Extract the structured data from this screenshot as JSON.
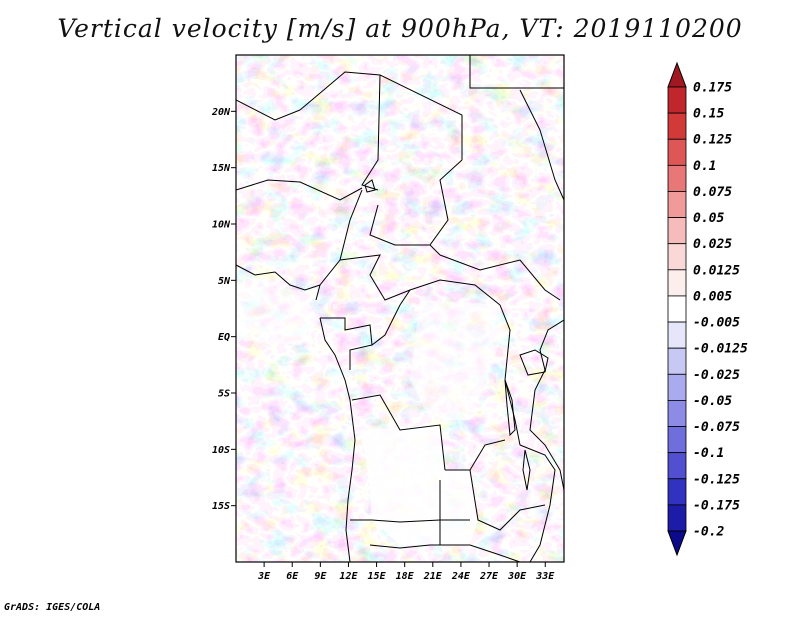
{
  "title": "Vertical velocity [m/s] at 900hPa, VT: 2019110200",
  "credit": "GrADS: IGES/COLA",
  "chart_data": {
    "type": "heatmap",
    "title": "Vertical velocity [m/s] at 900hPa, VT: 2019110200",
    "variable": "Vertical velocity",
    "units": "m/s",
    "level": "900hPa",
    "valid_time": "2019110200",
    "x_axis": {
      "range": [
        0,
        35
      ],
      "ticks": [
        3,
        6,
        9,
        12,
        15,
        18,
        21,
        24,
        27,
        30,
        33
      ],
      "tick_labels": [
        "3E",
        "6E",
        "9E",
        "12E",
        "15E",
        "18E",
        "21E",
        "24E",
        "27E",
        "30E",
        "33E"
      ]
    },
    "y_axis": {
      "range": [
        -20,
        25
      ],
      "ticks": [
        20,
        15,
        10,
        5,
        0,
        -5,
        -10,
        -15
      ],
      "tick_labels": [
        "20N",
        "15N",
        "10N",
        "5N",
        "EQ",
        "5S",
        "10S",
        "15S"
      ]
    },
    "colorbar": {
      "levels": [
        "0.175",
        "0.15",
        "0.125",
        "0.1",
        "0.075",
        "0.05",
        "0.025",
        "0.0125",
        "0.005",
        "-0.005",
        "-0.0125",
        "-0.025",
        "-0.05",
        "-0.075",
        "-0.1",
        "-0.125",
        "-0.175",
        "-0.2"
      ],
      "colors": [
        "#a01820",
        "#c0262c",
        "#d23a3a",
        "#de5656",
        "#e87878",
        "#f09a9a",
        "#f6bcbc",
        "#fad8d8",
        "#fdeeee",
        "#ffffff",
        "#e6e6fa",
        "#c8c8f4",
        "#aaaaee",
        "#8c8ce6",
        "#6e6edc",
        "#5050d0",
        "#3232c0",
        "#1c1ca8",
        "#0a0a8a"
      ]
    },
    "grid": false,
    "legend_placement": "right"
  }
}
